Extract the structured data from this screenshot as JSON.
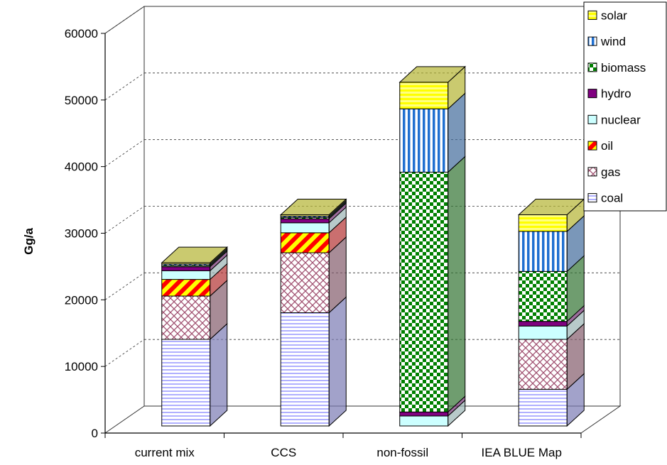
{
  "chart_data": {
    "type": "bar",
    "stacked": true,
    "three_d": true,
    "categories": [
      "current mix",
      "CCS",
      "non-fossil",
      "IEA BLUE Map"
    ],
    "series": [
      {
        "name": "coal",
        "values": [
          13000,
          17000,
          0,
          5500
        ],
        "pattern": "hlines",
        "color": "#8f8fff",
        "base": "#ffffff"
      },
      {
        "name": "gas",
        "values": [
          6500,
          9000,
          0,
          7500
        ],
        "pattern": "crosshatch",
        "color": "#a05070",
        "base": "#ffffff"
      },
      {
        "name": "oil",
        "values": [
          2500,
          3000,
          0,
          0
        ],
        "pattern": "diag",
        "color": "#ff0000",
        "base": "#ffff00"
      },
      {
        "name": "nuclear",
        "values": [
          1300,
          1500,
          1500,
          2000
        ],
        "pattern": "solid",
        "color": "#ccffff",
        "base": "#ccffff"
      },
      {
        "name": "hydro",
        "values": [
          600,
          600,
          600,
          700
        ],
        "pattern": "solid",
        "color": "#800080",
        "base": "#800080"
      },
      {
        "name": "biomass",
        "values": [
          200,
          200,
          36000,
          7500
        ],
        "pattern": "checker",
        "color": "#008000",
        "base": "#ffffff"
      },
      {
        "name": "wind",
        "values": [
          200,
          200,
          9500,
          6000
        ],
        "pattern": "vstripes",
        "color": "#1f6fd0",
        "base": "#ffffff"
      },
      {
        "name": "solar",
        "values": [
          200,
          200,
          4000,
          2500
        ],
        "pattern": "hlines-thick",
        "color": "#ffff00",
        "base": "#ffff80"
      }
    ],
    "yticks": [
      "0",
      "10000",
      "20000",
      "30000",
      "40000",
      "50000",
      "60000"
    ],
    "ylim": [
      0,
      60000
    ],
    "ylabel": "Gg/a",
    "xlabel": "",
    "title": "",
    "legend_position": "top-right",
    "grid": true
  }
}
